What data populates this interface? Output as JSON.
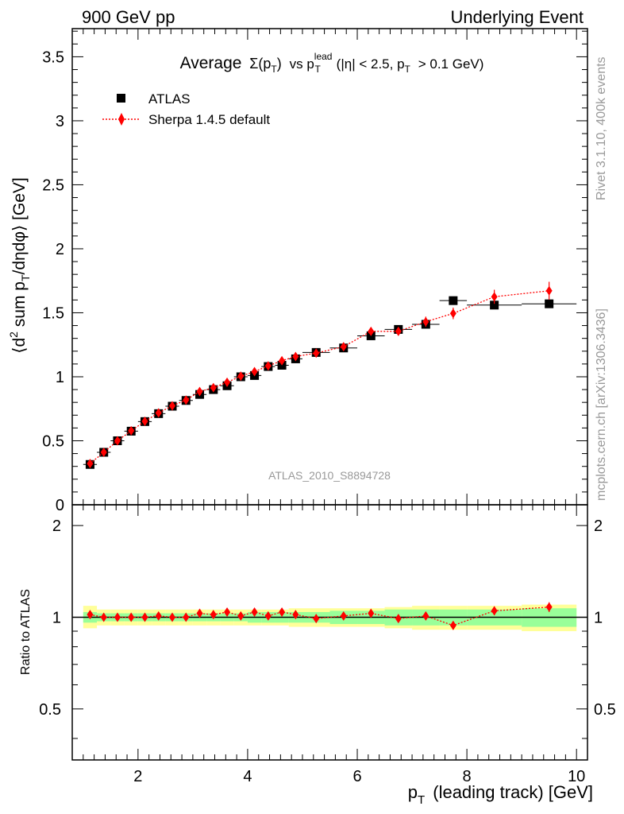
{
  "header": {
    "left": "900 GeV pp",
    "right": "Underlying Event"
  },
  "side_labels": {
    "rivet": "Rivet 3.1.10,  400k events",
    "mcplots": "mcplots.cern.ch [arXiv:1306.3436]"
  },
  "chart_data": [
    {
      "type": "scatter",
      "title_parts": {
        "prefix": "Average",
        "sigma": "Σ(p",
        "sigma_sub": "T",
        "sigma_close": ")",
        "vs": "vs p",
        "lead_sup": "lead",
        "lead_sub": "T",
        "cuts": "(|η| < 2.5, p",
        "cuts_sub": "T",
        "cuts_end": "> 0.1 GeV)"
      },
      "ylabel_parts": {
        "a": "⟨d",
        "sup": "2",
        "b": "sum p",
        "sub": "T",
        "c": "/dηdφ⟩ [GeV]"
      },
      "watermark": "ATLAS_2010_S8894728",
      "xlim": [
        0.8,
        10.2
      ],
      "ylim": [
        0,
        3.72
      ],
      "y_ticks": [
        0,
        0.5,
        1,
        1.5,
        2,
        2.5,
        3,
        3.5
      ],
      "y_tick_labels": [
        "0",
        "0.5",
        "1",
        "1.5",
        "2",
        "2.5",
        "3",
        "3.5"
      ],
      "legend_position": "top-left",
      "series": [
        {
          "name": "ATLAS",
          "color": "#000000",
          "marker": "square",
          "x": [
            1.125,
            1.375,
            1.625,
            1.875,
            2.125,
            2.375,
            2.625,
            2.875,
            3.125,
            3.375,
            3.625,
            3.875,
            4.125,
            4.375,
            4.625,
            4.875,
            5.25,
            5.75,
            6.25,
            6.75,
            7.25,
            7.75,
            8.5,
            9.5
          ],
          "xerr": [
            0.125,
            0.125,
            0.125,
            0.125,
            0.125,
            0.125,
            0.125,
            0.125,
            0.125,
            0.125,
            0.125,
            0.125,
            0.125,
            0.125,
            0.125,
            0.125,
            0.25,
            0.25,
            0.25,
            0.25,
            0.25,
            0.25,
            0.5,
            0.5
          ],
          "y": [
            0.315,
            0.41,
            0.5,
            0.575,
            0.65,
            0.712,
            0.77,
            0.815,
            0.862,
            0.9,
            0.93,
            1.0,
            1.01,
            1.08,
            1.09,
            1.14,
            1.19,
            1.225,
            1.32,
            1.37,
            1.41,
            1.595,
            1.56,
            1.57
          ]
        },
        {
          "name": "Sherpa 1.4.5 default",
          "color": "#ff0000",
          "marker": "diamond",
          "line": "dotted",
          "x": [
            1.125,
            1.375,
            1.625,
            1.875,
            2.125,
            2.375,
            2.625,
            2.875,
            3.125,
            3.375,
            3.625,
            3.875,
            4.125,
            4.375,
            4.625,
            4.875,
            5.25,
            5.75,
            6.25,
            6.75,
            7.25,
            7.75,
            8.5,
            9.5
          ],
          "y": [
            0.322,
            0.41,
            0.5,
            0.578,
            0.652,
            0.718,
            0.773,
            0.818,
            0.885,
            0.915,
            0.957,
            1.005,
            1.04,
            1.085,
            1.126,
            1.158,
            1.185,
            1.235,
            1.355,
            1.355,
            1.43,
            1.495,
            1.625,
            1.672
          ],
          "yerr": [
            0.008,
            0.008,
            0.01,
            0.01,
            0.01,
            0.012,
            0.012,
            0.012,
            0.015,
            0.015,
            0.015,
            0.018,
            0.018,
            0.02,
            0.02,
            0.02,
            0.022,
            0.025,
            0.03,
            0.032,
            0.04,
            0.045,
            0.055,
            0.07
          ]
        }
      ]
    },
    {
      "type": "scatter",
      "ylabel": "Ratio to ATLAS",
      "xlabel_parts": {
        "p": "p",
        "sub": "T",
        "rest": "(leading track) [GeV]"
      },
      "xlim": [
        0.8,
        10.2
      ],
      "ylim": [
        0.34,
        2.34
      ],
      "y_scale": "log",
      "x_ticks": [
        2,
        4,
        6,
        8,
        10
      ],
      "x_tick_labels": [
        "2",
        "4",
        "6",
        "8",
        "10"
      ],
      "y_ticks": [
        0.5,
        1,
        2
      ],
      "y_tick_labels": [
        "0.5",
        "1",
        "2"
      ],
      "reference_line": 1,
      "bands": {
        "stat_color": "#99ff99",
        "total_color": "#ffff99",
        "x_lo": [
          1.0,
          1.25,
          1.5,
          1.75,
          2.0,
          2.25,
          2.5,
          2.75,
          3.0,
          3.25,
          3.5,
          3.75,
          4.0,
          4.25,
          4.5,
          4.75,
          5.0,
          5.5,
          6.0,
          6.5,
          7.0,
          7.5,
          8.0,
          9.0
        ],
        "x_hi": [
          1.25,
          1.5,
          1.75,
          2.0,
          2.25,
          2.5,
          2.75,
          3.0,
          3.25,
          3.5,
          3.75,
          4.0,
          4.25,
          4.5,
          4.75,
          5.0,
          5.5,
          6.0,
          6.5,
          7.0,
          7.5,
          8.0,
          9.0,
          10.0
        ],
        "stat_lo": [
          0.96,
          0.97,
          0.97,
          0.97,
          0.97,
          0.97,
          0.97,
          0.97,
          0.97,
          0.97,
          0.97,
          0.97,
          0.96,
          0.96,
          0.96,
          0.96,
          0.96,
          0.95,
          0.95,
          0.94,
          0.94,
          0.94,
          0.94,
          0.93
        ],
        "stat_hi": [
          1.04,
          1.03,
          1.03,
          1.03,
          1.03,
          1.03,
          1.03,
          1.03,
          1.03,
          1.03,
          1.03,
          1.03,
          1.04,
          1.04,
          1.04,
          1.04,
          1.04,
          1.05,
          1.05,
          1.06,
          1.06,
          1.06,
          1.06,
          1.07
        ],
        "total_lo": [
          0.92,
          0.94,
          0.94,
          0.94,
          0.94,
          0.94,
          0.94,
          0.94,
          0.94,
          0.94,
          0.94,
          0.94,
          0.94,
          0.94,
          0.94,
          0.93,
          0.93,
          0.93,
          0.93,
          0.92,
          0.91,
          0.91,
          0.91,
          0.9
        ],
        "total_hi": [
          1.09,
          1.06,
          1.06,
          1.06,
          1.06,
          1.06,
          1.06,
          1.06,
          1.06,
          1.06,
          1.06,
          1.06,
          1.06,
          1.06,
          1.06,
          1.07,
          1.07,
          1.07,
          1.07,
          1.08,
          1.09,
          1.09,
          1.09,
          1.1
        ]
      },
      "series": [
        {
          "name": "Sherpa 1.4.5 default",
          "color": "#ff0000",
          "marker": "diamond",
          "line": "dotted",
          "x": [
            1.125,
            1.375,
            1.625,
            1.875,
            2.125,
            2.375,
            2.625,
            2.875,
            3.125,
            3.375,
            3.625,
            3.875,
            4.125,
            4.375,
            4.625,
            4.875,
            5.25,
            5.75,
            6.25,
            6.75,
            7.25,
            7.75,
            8.5,
            9.5
          ],
          "y": [
            1.02,
            1.0,
            1.0,
            1.0,
            1.0,
            1.01,
            1.0,
            1.0,
            1.03,
            1.02,
            1.04,
            1.01,
            1.04,
            1.01,
            1.04,
            1.02,
            0.99,
            1.01,
            1.03,
            0.99,
            1.01,
            0.94,
            1.05,
            1.08
          ],
          "yerr": [
            0.015,
            0.015,
            0.015,
            0.015,
            0.015,
            0.015,
            0.015,
            0.015,
            0.018,
            0.018,
            0.018,
            0.018,
            0.018,
            0.018,
            0.018,
            0.018,
            0.02,
            0.02,
            0.022,
            0.025,
            0.03,
            0.03,
            0.035,
            0.04
          ]
        }
      ]
    }
  ]
}
